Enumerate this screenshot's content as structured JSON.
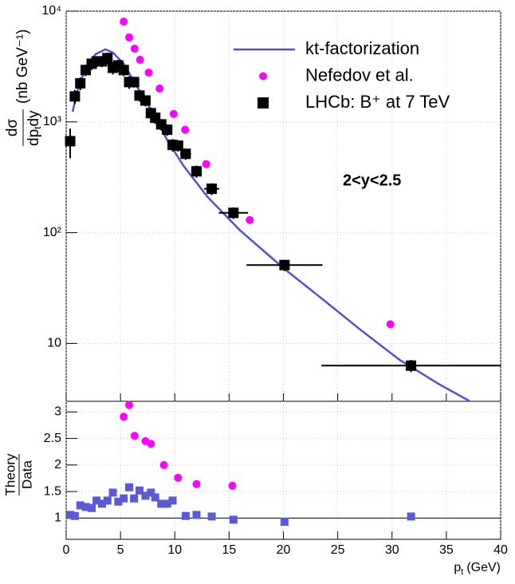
{
  "chart_data": [
    {
      "type": "scatter",
      "ylog": true,
      "xlim": [
        0,
        40
      ],
      "xticks": [
        0,
        5,
        10,
        15,
        20,
        25,
        30,
        35,
        40
      ],
      "ylim": [
        3,
        10000
      ],
      "yticks": [
        10,
        {
          "value": 100,
          "label": "10²"
        },
        {
          "value": 1000,
          "label": "10³"
        },
        {
          "value": 10000,
          "label": "10⁴"
        }
      ],
      "grid": true,
      "legend": "upper right",
      "annotation": "2<y<2.5",
      "ylabel": {
        "numerator": "dσ",
        "denominator": "dp",
        "denominator_sub": "t",
        "denominator_rest": "dy",
        "unit": "(nb GeV⁻¹)"
      },
      "series": [
        {
          "name": "kt-factorization",
          "style": "line",
          "color": "#5050d8",
          "x": [
            0.6,
            1.0,
            1.8,
            2.7,
            3.6,
            4.3,
            5.3,
            6.4,
            7.9,
            9.35,
            10.8,
            13.0,
            16.0,
            20.1,
            23.3,
            27.0,
            30.7,
            34.3,
            37.1
          ],
          "values": [
            1240,
            1870,
            3090,
            4080,
            4520,
            4230,
            3350,
            2180,
            1240,
            672,
            402,
            211,
            105,
            47,
            26.5,
            13.5,
            7.1,
            4.3,
            3.03
          ]
        },
        {
          "name": "Nefedov et al.",
          "style": "circle",
          "color": "#ff00ff",
          "x": [
            5.3,
            5.8,
            6.3,
            6.8,
            7.6,
            8.6,
            9.9,
            10.95,
            12.9,
            16.9,
            29.85
          ],
          "values": [
            8050,
            5800,
            4590,
            3640,
            2790,
            2000,
            1180,
            850,
            416,
            130,
            14.9
          ]
        },
        {
          "name": "LHCb: B⁺ at 7 TeV",
          "style": "square",
          "color": "#000000",
          "x": [
            0.37,
            0.8,
            1.3,
            1.8,
            2.35,
            2.8,
            3.3,
            3.8,
            4.3,
            4.8,
            5.3,
            5.8,
            6.25,
            6.75,
            7.3,
            7.8,
            8.2,
            8.75,
            9.3,
            9.8,
            10.3,
            11.0,
            12.0,
            13.4,
            15.4,
            20.1,
            31.75
          ],
          "values": [
            670,
            1700,
            2230,
            2940,
            3350,
            3520,
            3520,
            3770,
            3080,
            3240,
            2940,
            2290,
            2290,
            1730,
            1560,
            1200,
            1090,
            950,
            850,
            620,
            610,
            515,
            358,
            249,
            151,
            51,
            6.3
          ],
          "xerr": [
            0.25,
            0.25,
            0.25,
            0.25,
            0.25,
            0.25,
            0.25,
            0.25,
            0.25,
            0.25,
            0.25,
            0.25,
            0.25,
            0.25,
            0.25,
            0.25,
            0.25,
            0.25,
            0.25,
            0.25,
            0.25,
            0.5,
            0.5,
            0.7,
            1.35,
            3.5,
            8.25
          ],
          "yerr": [
            200,
            250,
            300,
            350,
            400,
            400,
            400,
            450,
            400,
            400,
            350,
            300,
            250,
            200,
            180,
            150,
            130,
            110,
            100,
            80,
            70,
            60,
            45,
            30,
            18,
            6,
            0.8
          ]
        }
      ]
    },
    {
      "type": "scatter",
      "ylog": false,
      "xlim": [
        0,
        40
      ],
      "xticks": [
        0,
        5,
        10,
        15,
        20,
        25,
        30,
        35,
        40
      ],
      "ylim": [
        0.6,
        3.2
      ],
      "yticks": [
        1,
        1.5,
        2,
        2.5,
        3
      ],
      "grid": true,
      "hline": 1,
      "ylabel": {
        "numerator": "Theory",
        "denominator": "Data"
      },
      "xlabel": {
        "text": "p",
        "sub": "t",
        "unit": "(GeV)"
      },
      "series": [
        {
          "style": "square",
          "color": "#5a5ad6",
          "x": [
            0.37,
            0.8,
            1.3,
            1.8,
            2.35,
            2.8,
            3.3,
            3.8,
            4.3,
            4.8,
            5.3,
            5.8,
            6.25,
            6.75,
            7.3,
            7.8,
            8.2,
            8.75,
            9.3,
            9.8,
            11.0,
            12.0,
            13.4,
            15.4,
            20.1,
            31.75
          ],
          "values": [
            1.06,
            1.04,
            1.24,
            1.21,
            1.19,
            1.33,
            1.27,
            1.33,
            1.48,
            1.31,
            1.37,
            1.58,
            1.37,
            1.52,
            1.42,
            1.48,
            1.39,
            1.27,
            1.27,
            1.33,
            1.04,
            1.06,
            1.03,
            0.97,
            0.93,
            1.03
          ]
        },
        {
          "style": "circle",
          "color": "#ff00ff",
          "x": [
            5.3,
            5.8,
            6.3,
            7.3,
            7.8,
            9.0,
            10.3,
            12.0,
            15.3
          ],
          "values": [
            2.91,
            3.13,
            2.55,
            2.45,
            2.4,
            2.0,
            1.76,
            1.64,
            1.61
          ]
        }
      ]
    }
  ]
}
